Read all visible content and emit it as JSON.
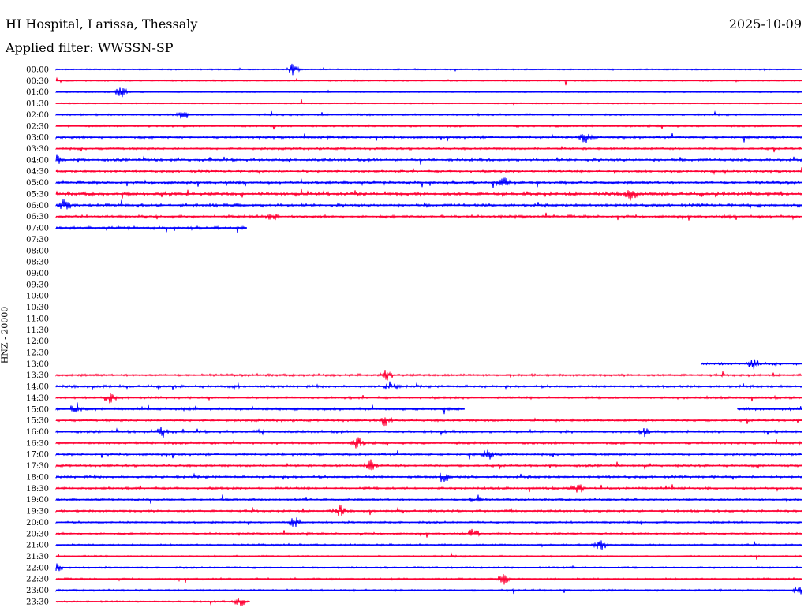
{
  "header": {
    "station": "HI Hospital, Larissa, Thessaly",
    "date": "2025-10-09",
    "filter": "Applied filter: WWSSN-SP"
  },
  "colors": {
    "even_row": "#0000ff",
    "odd_row": "#ff0033",
    "background": "#ffffff"
  },
  "chart_data": {
    "type": "line",
    "title": "HI Hospital, Larissa, Thessaly",
    "ylabel": "HNZ - 20000",
    "xlabel": "",
    "rows": [
      {
        "label": "00:00",
        "coverage": [
          [
            0,
            1
          ]
        ],
        "activity": 0.15
      },
      {
        "label": "00:30",
        "coverage": [
          [
            0,
            1
          ]
        ],
        "activity": 0.15
      },
      {
        "label": "01:00",
        "coverage": [
          [
            0,
            1
          ]
        ],
        "activity": 0.12
      },
      {
        "label": "01:30",
        "coverage": [
          [
            0,
            1
          ]
        ],
        "activity": 0.12
      },
      {
        "label": "02:00",
        "coverage": [
          [
            0,
            1
          ]
        ],
        "activity": 0.35
      },
      {
        "label": "02:30",
        "coverage": [
          [
            0,
            1
          ]
        ],
        "activity": 0.4
      },
      {
        "label": "03:00",
        "coverage": [
          [
            0,
            1
          ]
        ],
        "activity": 0.55
      },
      {
        "label": "03:30",
        "coverage": [
          [
            0,
            1
          ]
        ],
        "activity": 0.5
      },
      {
        "label": "04:00",
        "coverage": [
          [
            0,
            1
          ]
        ],
        "activity": 0.7
      },
      {
        "label": "04:30",
        "coverage": [
          [
            0,
            1
          ]
        ],
        "activity": 0.75
      },
      {
        "label": "05:00",
        "coverage": [
          [
            0,
            1
          ]
        ],
        "activity": 0.9
      },
      {
        "label": "05:30",
        "coverage": [
          [
            0,
            1
          ]
        ],
        "activity": 1.0
      },
      {
        "label": "06:00",
        "coverage": [
          [
            0,
            1
          ]
        ],
        "activity": 0.8
      },
      {
        "label": "06:30",
        "coverage": [
          [
            0,
            1
          ]
        ],
        "activity": 0.7
      },
      {
        "label": "07:00",
        "coverage": [
          [
            0,
            0.256
          ]
        ],
        "activity": 0.7
      },
      {
        "label": "07:30",
        "coverage": [],
        "activity": 0
      },
      {
        "label": "08:00",
        "coverage": [],
        "activity": 0
      },
      {
        "label": "08:30",
        "coverage": [],
        "activity": 0
      },
      {
        "label": "09:00",
        "coverage": [],
        "activity": 0
      },
      {
        "label": "09:30",
        "coverage": [],
        "activity": 0
      },
      {
        "label": "10:00",
        "coverage": [],
        "activity": 0
      },
      {
        "label": "10:30",
        "coverage": [],
        "activity": 0
      },
      {
        "label": "11:00",
        "coverage": [],
        "activity": 0
      },
      {
        "label": "11:30",
        "coverage": [],
        "activity": 0
      },
      {
        "label": "12:00",
        "coverage": [],
        "activity": 0
      },
      {
        "label": "12:30",
        "coverage": [],
        "activity": 0
      },
      {
        "label": "13:00",
        "coverage": [
          [
            0.866,
            1
          ]
        ],
        "activity": 0.5
      },
      {
        "label": "13:30",
        "coverage": [
          [
            0,
            1
          ]
        ],
        "activity": 0.55
      },
      {
        "label": "14:00",
        "coverage": [
          [
            0,
            1
          ]
        ],
        "activity": 0.6
      },
      {
        "label": "14:30",
        "coverage": [
          [
            0,
            1
          ]
        ],
        "activity": 0.5
      },
      {
        "label": "15:00",
        "coverage": [
          [
            0,
            0.548
          ],
          [
            0.914,
            1
          ]
        ],
        "activity": 0.6
      },
      {
        "label": "15:30",
        "coverage": [
          [
            0,
            1
          ]
        ],
        "activity": 0.55
      },
      {
        "label": "16:00",
        "coverage": [
          [
            0,
            1
          ]
        ],
        "activity": 0.6
      },
      {
        "label": "16:30",
        "coverage": [
          [
            0,
            1
          ]
        ],
        "activity": 0.55
      },
      {
        "label": "17:00",
        "coverage": [
          [
            0,
            1
          ]
        ],
        "activity": 0.5
      },
      {
        "label": "17:30",
        "coverage": [
          [
            0,
            1
          ]
        ],
        "activity": 0.55
      },
      {
        "label": "18:00",
        "coverage": [
          [
            0,
            1
          ]
        ],
        "activity": 0.6
      },
      {
        "label": "18:30",
        "coverage": [
          [
            0,
            1
          ]
        ],
        "activity": 0.55
      },
      {
        "label": "19:00",
        "coverage": [
          [
            0,
            1
          ]
        ],
        "activity": 0.5
      },
      {
        "label": "19:30",
        "coverage": [
          [
            0,
            1
          ]
        ],
        "activity": 0.5
      },
      {
        "label": "20:00",
        "coverage": [
          [
            0,
            1
          ]
        ],
        "activity": 0.4
      },
      {
        "label": "20:30",
        "coverage": [
          [
            0,
            1
          ]
        ],
        "activity": 0.35
      },
      {
        "label": "21:00",
        "coverage": [
          [
            0,
            1
          ]
        ],
        "activity": 0.4
      },
      {
        "label": "21:30",
        "coverage": [
          [
            0,
            1
          ]
        ],
        "activity": 0.3
      },
      {
        "label": "22:00",
        "coverage": [
          [
            0,
            1
          ]
        ],
        "activity": 0.3
      },
      {
        "label": "22:30",
        "coverage": [
          [
            0,
            1
          ]
        ],
        "activity": 0.35
      },
      {
        "label": "23:00",
        "coverage": [
          [
            0,
            1
          ]
        ],
        "activity": 0.35
      },
      {
        "label": "23:30",
        "coverage": [
          [
            0,
            0.26
          ]
        ],
        "activity": 0.3
      }
    ],
    "events": [
      {
        "row": 0,
        "x": 0.318
      },
      {
        "row": 2,
        "x": 0.087
      },
      {
        "row": 4,
        "x": 0.171
      },
      {
        "row": 6,
        "x": 0.71
      },
      {
        "row": 8,
        "x": 0.0
      },
      {
        "row": 10,
        "x": 0.6
      },
      {
        "row": 11,
        "x": 0.77
      },
      {
        "row": 12,
        "x": 0.012
      },
      {
        "row": 13,
        "x": 0.29
      },
      {
        "row": 26,
        "x": 0.935
      },
      {
        "row": 27,
        "x": 0.443
      },
      {
        "row": 28,
        "x": 0.45
      },
      {
        "row": 29,
        "x": 0.072
      },
      {
        "row": 30,
        "x": 0.026
      },
      {
        "row": 31,
        "x": 0.443
      },
      {
        "row": 32,
        "x": 0.143
      },
      {
        "row": 32,
        "x": 0.79
      },
      {
        "row": 33,
        "x": 0.405
      },
      {
        "row": 34,
        "x": 0.58
      },
      {
        "row": 35,
        "x": 0.422
      },
      {
        "row": 36,
        "x": 0.52
      },
      {
        "row": 37,
        "x": 0.7
      },
      {
        "row": 38,
        "x": 0.563
      },
      {
        "row": 39,
        "x": 0.38
      },
      {
        "row": 40,
        "x": 0.32
      },
      {
        "row": 41,
        "x": 0.56
      },
      {
        "row": 42,
        "x": 0.73
      },
      {
        "row": 44,
        "x": 0.0
      },
      {
        "row": 45,
        "x": 0.6
      },
      {
        "row": 46,
        "x": 0.997
      },
      {
        "row": 47,
        "x": 0.247
      }
    ]
  }
}
